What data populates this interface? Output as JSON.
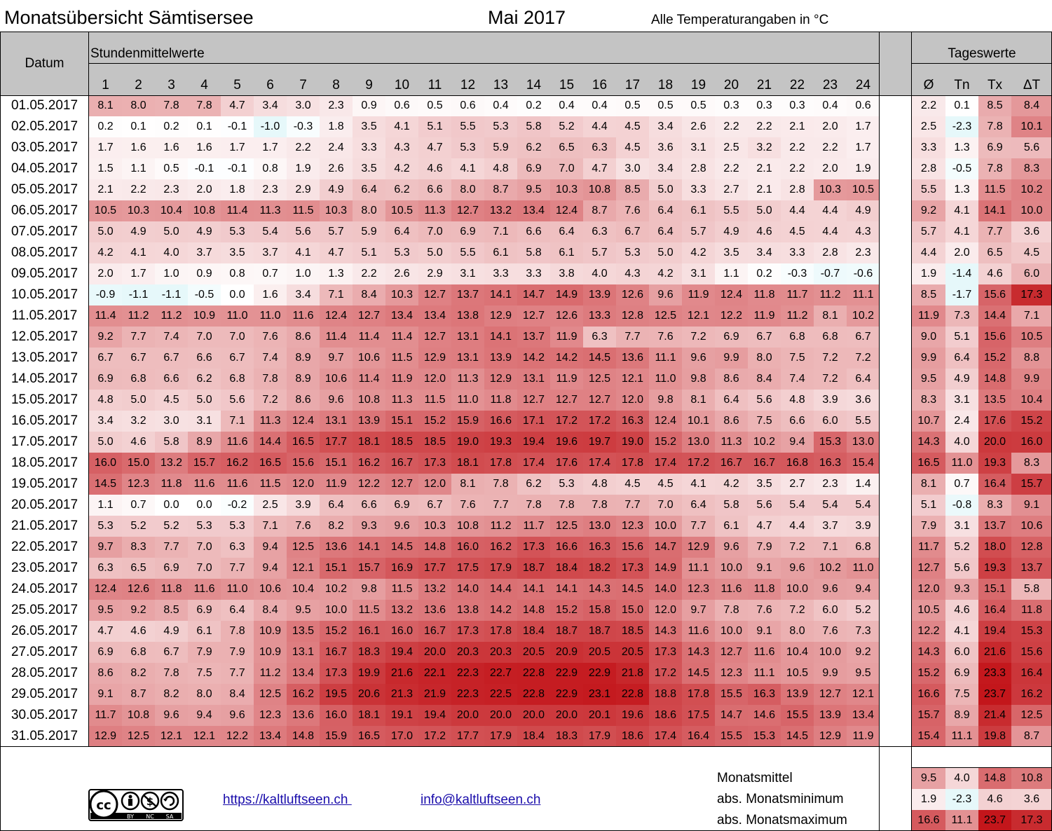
{
  "header": {
    "title": "Monatsübersicht Sämtisersee",
    "month": "Mai 2017",
    "note": "Alle Temperaturangaben in °C",
    "datum_label": "Datum",
    "hourly_label": "Stundenmittelwerte",
    "daily_label": "Tageswerte",
    "hours": [
      "1",
      "2",
      "3",
      "4",
      "5",
      "6",
      "7",
      "8",
      "9",
      "10",
      "11",
      "12",
      "13",
      "14",
      "15",
      "16",
      "17",
      "18",
      "19",
      "20",
      "21",
      "22",
      "23",
      "24"
    ],
    "daily_cols": [
      "Ø",
      "Tn",
      "Tx",
      "ΔT"
    ]
  },
  "chart_data": {
    "type": "heatmap",
    "title": "Monatsübersicht Sämtisersee",
    "dates": [
      "01.05.2017",
      "02.05.2017",
      "03.05.2017",
      "04.05.2017",
      "05.05.2017",
      "06.05.2017",
      "07.05.2017",
      "08.05.2017",
      "09.05.2017",
      "10.05.2017",
      "11.05.2017",
      "12.05.2017",
      "13.05.2017",
      "14.05.2017",
      "15.05.2017",
      "16.05.2017",
      "17.05.2017",
      "18.05.2017",
      "19.05.2017",
      "20.05.2017",
      "21.05.2017",
      "22.05.2017",
      "23.05.2017",
      "24.05.2017",
      "25.05.2017",
      "26.05.2017",
      "27.05.2017",
      "28.05.2017",
      "29.05.2017",
      "30.05.2017",
      "31.05.2017"
    ],
    "hourly": [
      [
        "8.1",
        "8.0",
        "7.8",
        "7.8",
        "4.7",
        "3.4",
        "3.0",
        "2.3",
        "0.9",
        "0.6",
        "0.5",
        "0.6",
        "0.4",
        "0.2",
        "0.4",
        "0.4",
        "0.5",
        "0.5",
        "0.5",
        "0.3",
        "0.3",
        "0.3",
        "0.4",
        "0.6"
      ],
      [
        "0.2",
        "0.1",
        "0.2",
        "0.1",
        "-0.1",
        "-1.0",
        "-0.3",
        "1.8",
        "3.5",
        "4.1",
        "5.1",
        "5.5",
        "5.3",
        "5.8",
        "5.2",
        "4.4",
        "4.5",
        "3.4",
        "2.6",
        "2.2",
        "2.2",
        "2.1",
        "2.0",
        "1.7"
      ],
      [
        "1.7",
        "1.6",
        "1.6",
        "1.6",
        "1.7",
        "1.7",
        "2.2",
        "2.4",
        "3.3",
        "4.3",
        "4.7",
        "5.3",
        "5.9",
        "6.2",
        "6.5",
        "6.3",
        "4.5",
        "3.6",
        "3.1",
        "2.5",
        "3.2",
        "2.2",
        "2.2",
        "1.7"
      ],
      [
        "1.5",
        "1.1",
        "0.5",
        "-0.1",
        "-0.1",
        "0.8",
        "1.9",
        "2.6",
        "3.5",
        "4.2",
        "4.6",
        "4.1",
        "4.8",
        "6.9",
        "7.0",
        "4.7",
        "3.0",
        "3.4",
        "2.8",
        "2.2",
        "2.1",
        "2.2",
        "2.0",
        "1.9"
      ],
      [
        "2.1",
        "2.2",
        "2.3",
        "2.0",
        "1.8",
        "2.3",
        "2.9",
        "4.9",
        "6.4",
        "6.2",
        "6.6",
        "8.0",
        "8.7",
        "9.5",
        "10.3",
        "10.8",
        "8.5",
        "5.0",
        "3.3",
        "2.7",
        "2.1",
        "2.8",
        "10.3",
        "10.5"
      ],
      [
        "10.5",
        "10.3",
        "10.4",
        "10.8",
        "11.4",
        "11.3",
        "11.5",
        "10.3",
        "8.0",
        "10.5",
        "11.3",
        "12.7",
        "13.2",
        "13.4",
        "12.4",
        "8.7",
        "7.6",
        "6.4",
        "6.1",
        "5.5",
        "5.0",
        "4.4",
        "4.4",
        "4.9"
      ],
      [
        "5.0",
        "4.9",
        "5.0",
        "4.9",
        "5.3",
        "5.4",
        "5.6",
        "5.7",
        "5.9",
        "6.4",
        "7.0",
        "6.9",
        "7.1",
        "6.6",
        "6.4",
        "6.3",
        "6.7",
        "6.4",
        "5.7",
        "4.9",
        "4.6",
        "4.5",
        "4.4",
        "4.3"
      ],
      [
        "4.2",
        "4.1",
        "4.0",
        "3.7",
        "3.5",
        "3.7",
        "4.1",
        "4.7",
        "5.1",
        "5.3",
        "5.0",
        "5.5",
        "6.1",
        "5.8",
        "6.1",
        "5.7",
        "5.3",
        "5.0",
        "4.2",
        "3.5",
        "3.4",
        "3.3",
        "2.8",
        "2.3"
      ],
      [
        "2.0",
        "1.7",
        "1.0",
        "0.9",
        "0.8",
        "0.7",
        "1.0",
        "1.3",
        "2.2",
        "2.6",
        "2.9",
        "3.1",
        "3.3",
        "3.3",
        "3.8",
        "4.0",
        "4.3",
        "4.2",
        "3.1",
        "1.1",
        "0.2",
        "-0.3",
        "-0.7",
        "-0.6"
      ],
      [
        "-0.9",
        "-1.1",
        "-1.1",
        "-0.5",
        "0.0",
        "1.6",
        "3.4",
        "7.1",
        "8.4",
        "10.3",
        "12.7",
        "13.7",
        "14.1",
        "14.7",
        "14.9",
        "13.9",
        "12.6",
        "9.6",
        "11.9",
        "12.4",
        "11.8",
        "11.7",
        "11.2",
        "11.1"
      ],
      [
        "11.4",
        "11.2",
        "11.2",
        "10.9",
        "11.0",
        "11.0",
        "11.6",
        "12.4",
        "12.7",
        "13.4",
        "13.4",
        "13.8",
        "12.9",
        "12.7",
        "12.6",
        "13.3",
        "12.8",
        "12.5",
        "12.1",
        "12.2",
        "11.9",
        "11.2",
        "8.1",
        "10.2"
      ],
      [
        "9.2",
        "7.7",
        "7.4",
        "7.0",
        "7.0",
        "7.6",
        "8.6",
        "11.4",
        "11.4",
        "11.4",
        "12.7",
        "13.1",
        "14.1",
        "13.7",
        "11.9",
        "6.3",
        "7.7",
        "7.6",
        "7.2",
        "6.9",
        "6.7",
        "6.8",
        "6.8",
        "6.7"
      ],
      [
        "6.7",
        "6.7",
        "6.7",
        "6.6",
        "6.7",
        "7.4",
        "8.9",
        "9.7",
        "10.6",
        "11.5",
        "12.9",
        "13.1",
        "13.9",
        "14.2",
        "14.2",
        "14.5",
        "13.6",
        "11.1",
        "9.6",
        "9.9",
        "8.0",
        "7.5",
        "7.2",
        "7.2"
      ],
      [
        "6.9",
        "6.8",
        "6.6",
        "6.2",
        "6.8",
        "7.8",
        "8.9",
        "10.6",
        "11.4",
        "11.9",
        "12.0",
        "11.3",
        "12.9",
        "13.1",
        "11.9",
        "12.5",
        "12.1",
        "11.0",
        "9.8",
        "8.6",
        "8.4",
        "7.4",
        "7.2",
        "6.4"
      ],
      [
        "4.8",
        "5.0",
        "4.5",
        "5.0",
        "5.6",
        "7.2",
        "8.6",
        "9.6",
        "10.8",
        "11.3",
        "11.5",
        "11.0",
        "11.8",
        "12.7",
        "12.7",
        "12.7",
        "12.0",
        "9.8",
        "8.1",
        "6.4",
        "5.6",
        "4.8",
        "3.9",
        "3.6"
      ],
      [
        "3.4",
        "3.2",
        "3.0",
        "3.1",
        "7.1",
        "11.3",
        "12.4",
        "13.1",
        "13.9",
        "15.1",
        "15.2",
        "15.9",
        "16.6",
        "17.1",
        "17.2",
        "17.2",
        "16.3",
        "12.4",
        "10.1",
        "8.6",
        "7.5",
        "6.6",
        "6.0",
        "5.5"
      ],
      [
        "5.0",
        "4.6",
        "5.8",
        "8.9",
        "11.6",
        "14.4",
        "16.5",
        "17.7",
        "18.1",
        "18.5",
        "18.5",
        "19.0",
        "19.3",
        "19.4",
        "19.6",
        "19.7",
        "19.0",
        "15.2",
        "13.0",
        "11.3",
        "10.2",
        "9.4",
        "15.3",
        "13.0"
      ],
      [
        "16.0",
        "15.0",
        "13.2",
        "15.7",
        "16.2",
        "16.5",
        "15.6",
        "15.1",
        "16.2",
        "16.7",
        "17.3",
        "18.1",
        "17.8",
        "17.4",
        "17.6",
        "17.4",
        "17.8",
        "17.4",
        "17.2",
        "16.7",
        "16.7",
        "16.8",
        "16.3",
        "15.4"
      ],
      [
        "14.5",
        "12.3",
        "11.8",
        "11.6",
        "11.6",
        "11.5",
        "12.0",
        "11.9",
        "12.2",
        "12.7",
        "12.0",
        "8.1",
        "7.8",
        "6.2",
        "5.3",
        "4.8",
        "4.5",
        "4.5",
        "4.1",
        "4.2",
        "3.5",
        "2.7",
        "2.3",
        "1.4"
      ],
      [
        "1.1",
        "0.7",
        "0.0",
        "0.0",
        "-0.2",
        "2.5",
        "3.9",
        "6.4",
        "6.6",
        "6.9",
        "6.7",
        "7.6",
        "7.7",
        "7.8",
        "7.8",
        "7.8",
        "7.7",
        "7.0",
        "6.4",
        "5.8",
        "5.6",
        "5.4",
        "5.4",
        "5.4"
      ],
      [
        "5.3",
        "5.2",
        "5.2",
        "5.3",
        "5.3",
        "7.1",
        "7.6",
        "8.2",
        "9.3",
        "9.6",
        "10.3",
        "10.8",
        "11.2",
        "11.7",
        "12.5",
        "13.0",
        "12.3",
        "10.0",
        "7.7",
        "6.1",
        "4.7",
        "4.4",
        "3.7",
        "3.9"
      ],
      [
        "9.7",
        "8.3",
        "7.7",
        "7.0",
        "6.3",
        "9.4",
        "12.5",
        "13.6",
        "14.1",
        "14.5",
        "14.8",
        "16.0",
        "16.2",
        "17.3",
        "16.6",
        "16.3",
        "15.6",
        "14.7",
        "12.9",
        "9.6",
        "7.9",
        "7.2",
        "7.1",
        "6.8"
      ],
      [
        "6.3",
        "6.5",
        "6.9",
        "7.0",
        "7.7",
        "9.4",
        "12.1",
        "15.1",
        "15.7",
        "16.9",
        "17.7",
        "17.5",
        "17.9",
        "18.7",
        "18.4",
        "18.2",
        "17.3",
        "14.9",
        "11.1",
        "10.0",
        "9.1",
        "9.6",
        "10.2",
        "11.0"
      ],
      [
        "12.4",
        "12.6",
        "11.8",
        "11.6",
        "11.0",
        "10.6",
        "10.4",
        "10.2",
        "9.8",
        "11.5",
        "13.2",
        "14.0",
        "14.4",
        "14.1",
        "14.1",
        "14.3",
        "14.5",
        "14.0",
        "12.3",
        "11.6",
        "11.8",
        "10.0",
        "9.6",
        "9.4"
      ],
      [
        "9.5",
        "9.2",
        "8.5",
        "6.9",
        "6.4",
        "8.4",
        "9.5",
        "10.0",
        "11.5",
        "13.2",
        "13.6",
        "13.8",
        "14.2",
        "14.8",
        "15.2",
        "15.8",
        "15.0",
        "12.0",
        "9.7",
        "7.8",
        "7.6",
        "7.2",
        "6.0",
        "5.2"
      ],
      [
        "4.7",
        "4.6",
        "4.9",
        "6.1",
        "7.8",
        "10.9",
        "13.5",
        "15.2",
        "16.1",
        "16.0",
        "16.7",
        "17.3",
        "17.8",
        "18.4",
        "18.7",
        "18.7",
        "18.5",
        "14.3",
        "11.6",
        "10.0",
        "9.1",
        "8.0",
        "7.6",
        "7.3"
      ],
      [
        "6.9",
        "6.8",
        "6.7",
        "7.9",
        "7.9",
        "10.9",
        "13.1",
        "16.7",
        "18.3",
        "19.4",
        "20.0",
        "20.3",
        "20.3",
        "20.5",
        "20.9",
        "20.5",
        "20.5",
        "17.3",
        "14.3",
        "12.7",
        "11.6",
        "10.4",
        "10.0",
        "9.2"
      ],
      [
        "8.6",
        "8.2",
        "7.8",
        "7.5",
        "7.7",
        "11.2",
        "13.4",
        "17.3",
        "19.9",
        "21.6",
        "22.1",
        "22.3",
        "22.7",
        "22.8",
        "22.9",
        "22.9",
        "21.8",
        "17.2",
        "14.5",
        "12.3",
        "11.1",
        "10.5",
        "9.9",
        "9.5"
      ],
      [
        "9.1",
        "8.7",
        "8.2",
        "8.0",
        "8.4",
        "12.5",
        "16.2",
        "19.5",
        "20.6",
        "21.3",
        "21.9",
        "22.3",
        "22.5",
        "22.8",
        "22.9",
        "23.1",
        "22.8",
        "18.8",
        "17.8",
        "15.5",
        "16.3",
        "13.9",
        "12.7",
        "12.1"
      ],
      [
        "11.7",
        "10.8",
        "9.6",
        "9.4",
        "9.6",
        "12.3",
        "13.6",
        "16.0",
        "18.1",
        "19.1",
        "19.4",
        "20.0",
        "20.0",
        "20.0",
        "20.0",
        "20.1",
        "19.6",
        "18.6",
        "17.5",
        "14.7",
        "14.6",
        "15.5",
        "13.9",
        "13.4"
      ],
      [
        "12.9",
        "12.5",
        "12.1",
        "12.1",
        "12.2",
        "13.4",
        "14.8",
        "15.9",
        "16.5",
        "17.0",
        "17.2",
        "17.7",
        "17.9",
        "18.4",
        "18.3",
        "17.9",
        "18.6",
        "17.4",
        "16.4",
        "15.5",
        "15.3",
        "14.5",
        "12.9",
        "11.9"
      ]
    ],
    "daily": [
      [
        "2.2",
        "0.1",
        "8.5",
        "8.4"
      ],
      [
        "2.5",
        "-2.3",
        "7.8",
        "10.1"
      ],
      [
        "3.3",
        "1.3",
        "6.9",
        "5.6"
      ],
      [
        "2.8",
        "-0.5",
        "7.8",
        "8.3"
      ],
      [
        "5.5",
        "1.3",
        "11.5",
        "10.2"
      ],
      [
        "9.2",
        "4.1",
        "14.1",
        "10.0"
      ],
      [
        "5.7",
        "4.1",
        "7.7",
        "3.6"
      ],
      [
        "4.4",
        "2.0",
        "6.5",
        "4.5"
      ],
      [
        "1.9",
        "-1.4",
        "4.6",
        "6.0"
      ],
      [
        "8.5",
        "-1.7",
        "15.6",
        "17.3"
      ],
      [
        "11.9",
        "7.3",
        "14.4",
        "7.1"
      ],
      [
        "9.0",
        "5.1",
        "15.6",
        "10.5"
      ],
      [
        "9.9",
        "6.4",
        "15.2",
        "8.8"
      ],
      [
        "9.5",
        "4.9",
        "14.8",
        "9.9"
      ],
      [
        "8.3",
        "3.1",
        "13.5",
        "10.4"
      ],
      [
        "10.7",
        "2.4",
        "17.6",
        "15.2"
      ],
      [
        "14.3",
        "4.0",
        "20.0",
        "16.0"
      ],
      [
        "16.5",
        "11.0",
        "19.3",
        "8.3"
      ],
      [
        "8.1",
        "0.7",
        "16.4",
        "15.7"
      ],
      [
        "5.1",
        "-0.8",
        "8.3",
        "9.1"
      ],
      [
        "7.9",
        "3.1",
        "13.7",
        "10.6"
      ],
      [
        "11.7",
        "5.2",
        "18.0",
        "12.8"
      ],
      [
        "12.7",
        "5.6",
        "19.3",
        "13.7"
      ],
      [
        "12.0",
        "9.3",
        "15.1",
        "5.8"
      ],
      [
        "10.5",
        "4.6",
        "16.4",
        "11.8"
      ],
      [
        "12.2",
        "4.1",
        "19.4",
        "15.3"
      ],
      [
        "14.3",
        "6.0",
        "21.6",
        "15.6"
      ],
      [
        "15.2",
        "6.9",
        "23.3",
        "16.4"
      ],
      [
        "16.6",
        "7.5",
        "23.7",
        "16.2"
      ],
      [
        "15.7",
        "8.9",
        "21.4",
        "12.5"
      ],
      [
        "15.4",
        "11.1",
        "19.8",
        "8.7"
      ]
    ],
    "summary": [
      {
        "label": "Monatsmittel",
        "values": [
          "9.5",
          "4.0",
          "14.8",
          "10.8"
        ]
      },
      {
        "label": "abs. Monatsminimum",
        "values": [
          "1.9",
          "-2.3",
          "4.6",
          "3.6"
        ]
      },
      {
        "label": "abs. Monatsmaximum",
        "values": [
          "16.6",
          "11.1",
          "23.7",
          "17.3"
        ]
      }
    ],
    "color_scale": {
      "cold": "#e6f8fa",
      "neutral": "#ffffff",
      "warm": "#c3161b"
    }
  },
  "footer": {
    "url": "https://kaltluftseen.ch ",
    "email": "info@kaltluftseen.ch",
    "license_icon": "cc-by-nc-sa-icon"
  }
}
